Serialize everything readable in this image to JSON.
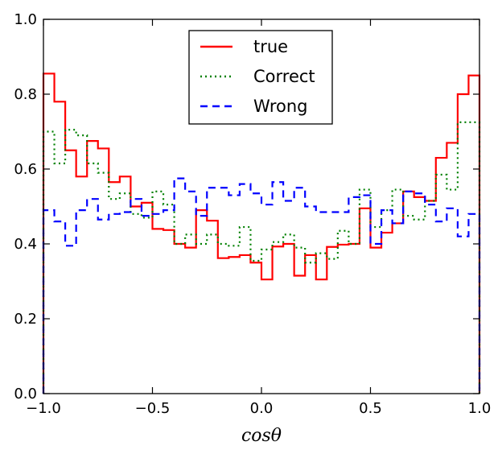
{
  "chart_data": {
    "type": "histogram-step",
    "title": "",
    "xlabel": "cosθ",
    "ylabel": "",
    "xlim": [
      -1.0,
      1.0
    ],
    "ylim": [
      0.0,
      1.0
    ],
    "bins": 40,
    "bin_width": 0.05,
    "x_ticks": [
      -1.0,
      -0.5,
      0.0,
      0.5,
      1.0
    ],
    "x_tick_labels": [
      "−1.0",
      "−0.5",
      "0.0",
      "0.5",
      "1.0"
    ],
    "y_ticks": [
      0.0,
      0.2,
      0.4,
      0.6,
      0.8,
      1.0
    ],
    "y_tick_labels": [
      "0.0",
      "0.2",
      "0.4",
      "0.6",
      "0.8",
      "1.0"
    ],
    "legend_position": "top-center",
    "series": [
      {
        "name": "true",
        "color": "#ff0000",
        "style": "solid",
        "values": [
          0.855,
          0.78,
          0.65,
          0.58,
          0.675,
          0.655,
          0.565,
          0.58,
          0.5,
          0.51,
          0.44,
          0.437,
          0.4,
          0.39,
          0.49,
          0.462,
          0.362,
          0.365,
          0.37,
          0.35,
          0.305,
          0.393,
          0.4,
          0.315,
          0.37,
          0.305,
          0.392,
          0.398,
          0.4,
          0.495,
          0.39,
          0.43,
          0.455,
          0.54,
          0.525,
          0.515,
          0.63,
          0.67,
          0.8,
          0.85
        ]
      },
      {
        "name": "Correct",
        "color": "#008000",
        "style": "dotted",
        "values": [
          0.7,
          0.615,
          0.705,
          0.69,
          0.615,
          0.59,
          0.52,
          0.535,
          0.48,
          0.47,
          0.54,
          0.505,
          0.4,
          0.425,
          0.4,
          0.425,
          0.4,
          0.395,
          0.445,
          0.355,
          0.385,
          0.405,
          0.425,
          0.39,
          0.35,
          0.375,
          0.36,
          0.435,
          0.4,
          0.545,
          0.445,
          0.49,
          0.545,
          0.475,
          0.465,
          0.515,
          0.585,
          0.545,
          0.725,
          0.725
        ]
      },
      {
        "name": "Wrong",
        "color": "#0000ff",
        "style": "dashed",
        "values": [
          0.49,
          0.46,
          0.395,
          0.49,
          0.52,
          0.465,
          0.48,
          0.485,
          0.52,
          0.475,
          0.48,
          0.49,
          0.575,
          0.54,
          0.475,
          0.55,
          0.55,
          0.53,
          0.56,
          0.535,
          0.505,
          0.565,
          0.515,
          0.55,
          0.5,
          0.485,
          0.485,
          0.485,
          0.525,
          0.53,
          0.4,
          0.49,
          0.455,
          0.54,
          0.535,
          0.505,
          0.46,
          0.495,
          0.42,
          0.48
        ]
      }
    ]
  }
}
